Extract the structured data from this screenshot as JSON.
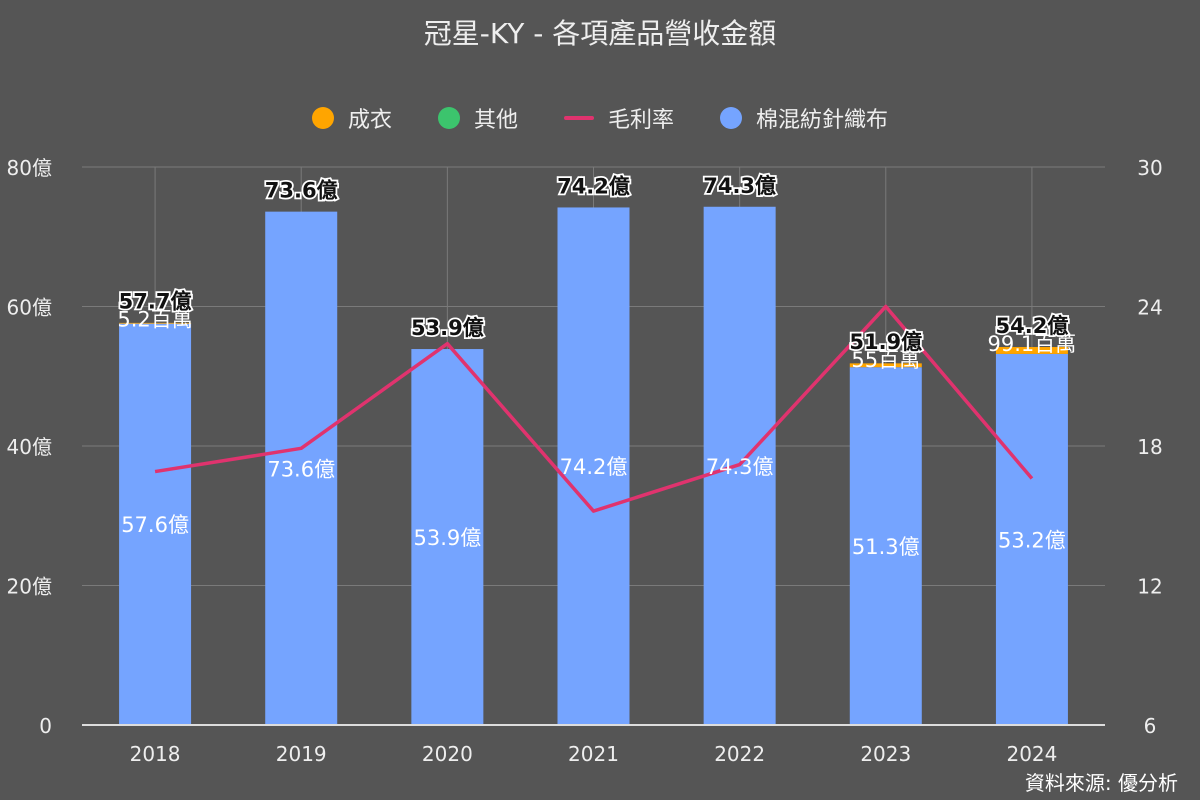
{
  "chart_data": {
    "type": "bar",
    "title": "冠星-KY - 各項產品營收金額",
    "categories": [
      "2018",
      "2019",
      "2020",
      "2021",
      "2022",
      "2023",
      "2024"
    ],
    "series": [
      {
        "name": "成衣",
        "kind": "bar",
        "color": "#ffa500",
        "values": [
          0.052,
          0,
          0,
          0,
          0,
          0.55,
          0.991
        ],
        "labels": [
          "5.2百萬",
          "",
          "",
          "",
          "",
          "55百萬",
          "99.1百萬"
        ]
      },
      {
        "name": "其他",
        "kind": "bar",
        "color": "#3cc46d",
        "values": [
          0,
          0,
          0,
          0,
          0,
          0,
          0
        ],
        "labels": [
          "",
          "",
          "",
          "",
          "",
          "",
          ""
        ]
      },
      {
        "name": "毛利率",
        "kind": "line",
        "axis": "right",
        "color": "#e0336e",
        "values": [
          16.9,
          17.9,
          22.4,
          15.2,
          17.2,
          24.0,
          16.6
        ]
      },
      {
        "name": "棉混紡針織布",
        "kind": "bar",
        "color": "#75a4ff",
        "values": [
          57.6,
          73.6,
          53.9,
          74.2,
          74.3,
          51.3,
          53.2
        ],
        "labels": [
          "57.6億",
          "73.6億",
          "53.9億",
          "74.2億",
          "74.3億",
          "51.3億",
          "53.2億"
        ]
      }
    ],
    "totals": [
      57.7,
      73.6,
      53.9,
      74.2,
      74.3,
      51.9,
      54.2
    ],
    "total_labels": [
      "57.7億",
      "73.6億",
      "53.9億",
      "74.2億",
      "74.3億",
      "51.9億",
      "54.2億"
    ],
    "y_left": {
      "min": 0,
      "max": 80,
      "ticks": [
        0,
        20,
        40,
        60,
        80
      ],
      "tick_labels": [
        "0",
        "20億",
        "40億",
        "60億",
        "80億"
      ]
    },
    "y_right": {
      "min": 6,
      "max": 30,
      "ticks": [
        6,
        12,
        18,
        24,
        30
      ],
      "tick_labels": [
        "6",
        "12",
        "18",
        "24",
        "30"
      ]
    },
    "grid": true,
    "legend_position": "top"
  },
  "source": "資料來源: 優分析"
}
